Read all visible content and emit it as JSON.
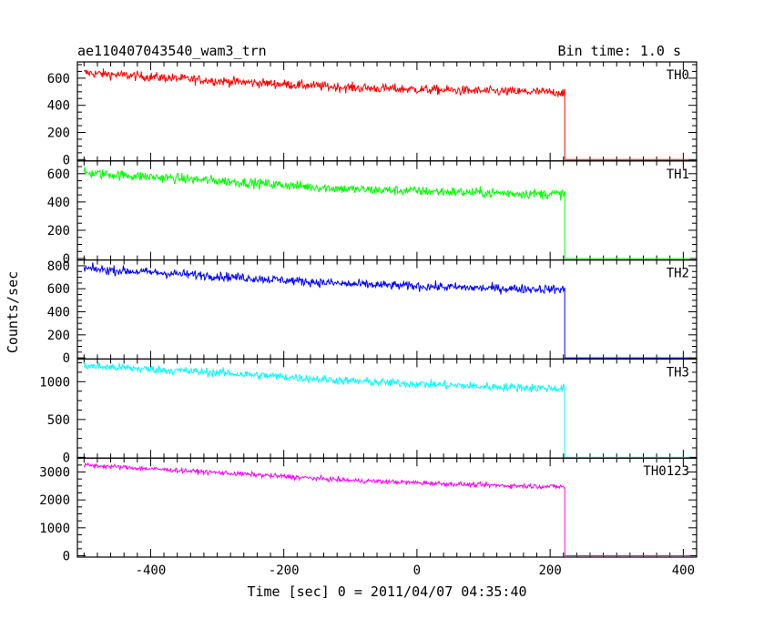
{
  "header": {
    "title": "ae110407043540_wam3_trn",
    "bin_time": "Bin time: 1.0 s"
  },
  "axes": {
    "xlabel": "Time [sec] 0 = 2011/04/07 04:35:40",
    "ylabel": "Counts/sec"
  },
  "chart_data": {
    "type": "line",
    "title": "ae110407043540_wam3_trn",
    "subtitle": "Bin time: 1.0 s",
    "xlabel": "Time [sec] 0 = 2011/04/07 04:35:40",
    "ylabel": "Counts/sec",
    "xlim": [
      -510,
      420
    ],
    "x_ticks": [
      -400,
      -200,
      0,
      200,
      400
    ],
    "cutoff_time": 222,
    "series_start": -500,
    "grid": false,
    "panels": [
      {
        "name": "TH0",
        "color": "#ff0000",
        "ylim": [
          -10,
          720
        ],
        "y_ticks": [
          0,
          200,
          400,
          600
        ],
        "trend": [
          [
            -500,
            640
          ],
          [
            -300,
            580
          ],
          [
            -100,
            530
          ],
          [
            100,
            505
          ],
          [
            222,
            495
          ]
        ],
        "noise_amplitude": 25,
        "after_cutoff": 0
      },
      {
        "name": "TH1",
        "color": "#00ff00",
        "ylim": [
          -10,
          690
        ],
        "y_ticks": [
          0,
          200,
          400,
          600
        ],
        "trend": [
          [
            -500,
            605
          ],
          [
            -300,
            550
          ],
          [
            -100,
            490
          ],
          [
            100,
            465
          ],
          [
            222,
            455
          ]
        ],
        "noise_amplitude": 25,
        "after_cutoff": 0
      },
      {
        "name": "TH2",
        "color": "#0000ff",
        "ylim": [
          -10,
          850
        ],
        "y_ticks": [
          0,
          200,
          400,
          600,
          800
        ],
        "trend": [
          [
            -500,
            775
          ],
          [
            -300,
            710
          ],
          [
            -100,
            640
          ],
          [
            100,
            605
          ],
          [
            222,
            595
          ]
        ],
        "noise_amplitude": 28,
        "after_cutoff": 0
      },
      {
        "name": "TH3",
        "color": "#00ffff",
        "ylim": [
          -10,
          1300
        ],
        "y_ticks": [
          0,
          500,
          1000
        ],
        "trend": [
          [
            -500,
            1210
          ],
          [
            -300,
            1120
          ],
          [
            -100,
            1010
          ],
          [
            100,
            935
          ],
          [
            222,
            910
          ]
        ],
        "noise_amplitude": 40,
        "after_cutoff": 0
      },
      {
        "name": "TH0123",
        "color": "#ff00ff",
        "ylim": [
          -50,
          3500
        ],
        "y_ticks": [
          0,
          1000,
          2000,
          3000
        ],
        "trend": [
          [
            -500,
            3250
          ],
          [
            -300,
            2980
          ],
          [
            -100,
            2700
          ],
          [
            100,
            2530
          ],
          [
            222,
            2470
          ]
        ],
        "noise_amplitude": 60,
        "after_cutoff": 0
      }
    ]
  }
}
